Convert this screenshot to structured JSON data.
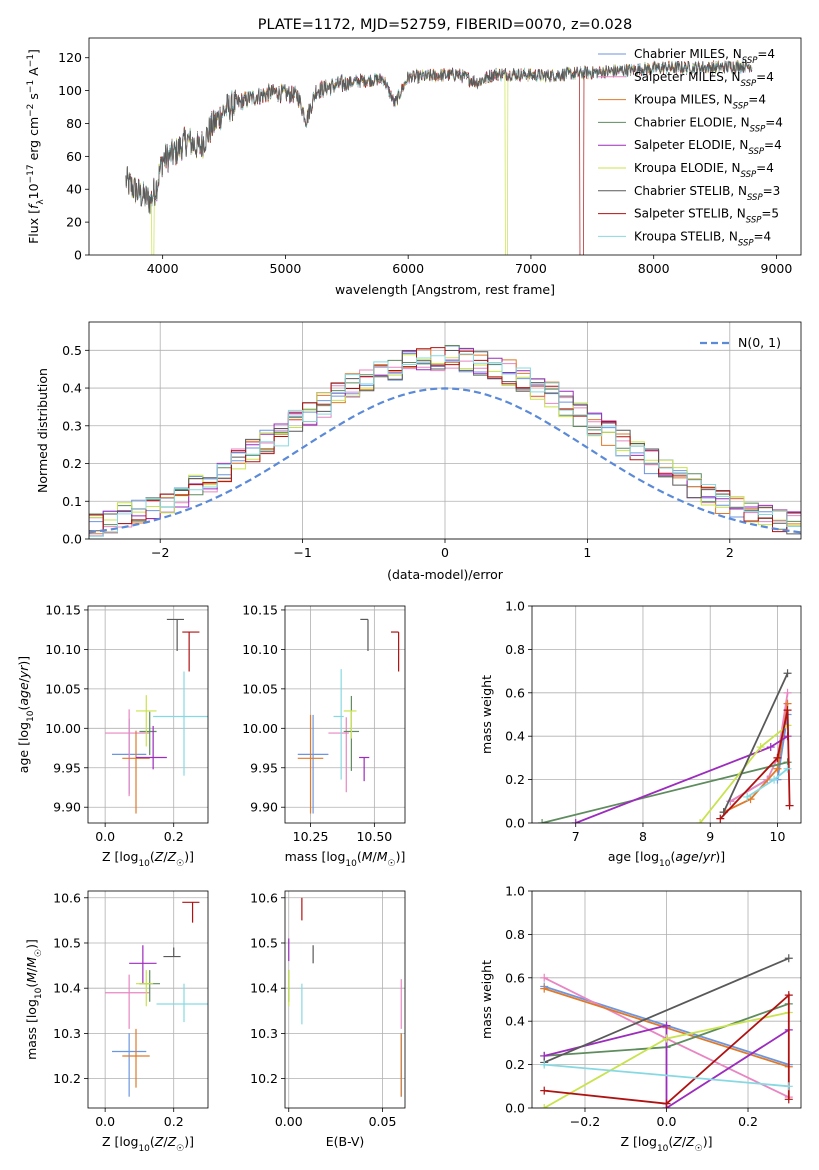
{
  "chart_data": [
    {
      "type": "line",
      "title": "PLATE=1172, MJD=52759, FIBERID=0070, z=0.028",
      "xlabel": "wavelength [Angstrom, rest frame]",
      "ylabel_parts": [
        "Flux [",
        "f",
        "λ",
        "10",
        "−17",
        " erg cm",
        "−2",
        " s",
        "−1",
        " A",
        "−1",
        "]"
      ],
      "xlim": [
        3400,
        9200
      ],
      "ylim": [
        0,
        132
      ],
      "xticks": [
        "4000",
        "5000",
        "6000",
        "7000",
        "8000",
        "9000"
      ],
      "xtick_values": [
        4000,
        5000,
        6000,
        7000,
        8000,
        9000
      ],
      "yticks": [
        "0",
        "20",
        "40",
        "60",
        "80",
        "100",
        "120"
      ],
      "ytick_values": [
        0,
        20,
        40,
        60,
        80,
        100,
        120
      ],
      "spectrum_anchors": [
        [
          3700,
          45
        ],
        [
          3800,
          38
        ],
        [
          3900,
          33
        ],
        [
          3950,
          42
        ],
        [
          4000,
          58
        ],
        [
          4100,
          62
        ],
        [
          4200,
          70
        ],
        [
          4300,
          65
        ],
        [
          4400,
          78
        ],
        [
          4500,
          88
        ],
        [
          4600,
          92
        ],
        [
          4700,
          95
        ],
        [
          4800,
          97
        ],
        [
          4900,
          99
        ],
        [
          5000,
          98
        ],
        [
          5100,
          97
        ],
        [
          5170,
          82
        ],
        [
          5250,
          100
        ],
        [
          5400,
          103
        ],
        [
          5600,
          106
        ],
        [
          5800,
          107
        ],
        [
          5890,
          92
        ],
        [
          6000,
          108
        ],
        [
          6200,
          109
        ],
        [
          6400,
          110
        ],
        [
          6563,
          105
        ],
        [
          6700,
          110
        ],
        [
          6900,
          110
        ],
        [
          7100,
          109
        ],
        [
          7300,
          110
        ],
        [
          7500,
          111
        ],
        [
          7700,
          112
        ],
        [
          7900,
          113
        ],
        [
          8100,
          114
        ],
        [
          8300,
          114
        ],
        [
          8500,
          114
        ],
        [
          8700,
          115
        ],
        [
          8800,
          115
        ]
      ],
      "dropouts": [
        {
          "series": 5,
          "from": 6790,
          "to": 6810
        },
        {
          "series": 7,
          "from": 7400,
          "to": 7430
        },
        {
          "series": 5,
          "from": 3910,
          "to": 3930
        }
      ],
      "legend": {
        "position": "right",
        "entries": [
          {
            "name": "Chabrier MILES, N",
            "sub": "SSP",
            "suffix": "=4"
          },
          {
            "name": "Salpeter MILES, N",
            "sub": "SSP",
            "suffix": "=4"
          },
          {
            "name": "Kroupa MILES, N",
            "sub": "SSP",
            "suffix": "=4"
          },
          {
            "name": "Chabrier ELODIE, N",
            "sub": "SSP",
            "suffix": "=4"
          },
          {
            "name": "Salpeter ELODIE, N",
            "sub": "SSP",
            "suffix": "=4"
          },
          {
            "name": "Kroupa ELODIE, N",
            "sub": "SSP",
            "suffix": "=4"
          },
          {
            "name": "Chabrier STELIB, N",
            "sub": "SSP",
            "suffix": "=3"
          },
          {
            "name": "Salpeter STELIB, N",
            "sub": "SSP",
            "suffix": "=5"
          },
          {
            "name": "Kroupa STELIB, N",
            "sub": "SSP",
            "suffix": "=4"
          }
        ]
      }
    },
    {
      "type": "line",
      "xlabel": "(data-model)/error",
      "ylabel": "Normed distribution",
      "xlim": [
        -2.5,
        2.5
      ],
      "ylim": [
        0,
        0.575
      ],
      "grid": true,
      "xticks": [
        "−2",
        "−1",
        "0",
        "1",
        "2"
      ],
      "xtick_values": [
        -2,
        -1,
        0,
        1,
        2
      ],
      "yticks": [
        "0.0",
        "0.1",
        "0.2",
        "0.3",
        "0.4",
        "0.5"
      ],
      "ytick_values": [
        0,
        0.1,
        0.2,
        0.3,
        0.4,
        0.5
      ],
      "bin_width": 0.1,
      "gaussian": {
        "name": "N(0, 1)",
        "mean": 0,
        "sigma": 1
      }
    },
    {
      "type": "scatter",
      "xlabel": "Z [log10(Z/Z☉)]",
      "ylabel": "age  [log10(age/yr)]",
      "xlim": [
        -0.05,
        0.3
      ],
      "ylim": [
        9.88,
        10.155
      ],
      "grid": true,
      "xticks": [
        "0.0",
        "0.2"
      ],
      "xtick_values": [
        0,
        0.2
      ],
      "yticks": [
        "9.90",
        "9.95",
        "10.00",
        "10.05",
        "10.10",
        "10.15"
      ],
      "ytick_values": [
        9.9,
        9.95,
        10.0,
        10.05,
        10.1,
        10.15
      ],
      "points": [
        {
          "x": 0.07,
          "y": 9.967,
          "xerr": [
            0.05,
            0.05
          ],
          "yerr": [
            0.05,
            0.045
          ]
        },
        {
          "x": 0.07,
          "y": 9.994,
          "xerr": [
            0.07,
            0.06
          ],
          "yerr": [
            0.08,
            0.03
          ]
        },
        {
          "x": 0.09,
          "y": 9.962,
          "xerr": [
            0.04,
            0.04
          ],
          "yerr": [
            0.07,
            0.035
          ]
        },
        {
          "x": 0.13,
          "y": 9.996,
          "xerr": [
            0.03,
            0.02
          ],
          "yerr": [
            0.03,
            0.025
          ]
        },
        {
          "x": 0.14,
          "y": 9.963,
          "xerr": [
            0.05,
            0.04
          ],
          "yerr": [
            0.015,
            0.04
          ]
        },
        {
          "x": 0.12,
          "y": 10.022,
          "xerr": [
            0.03,
            0.03
          ],
          "yerr": [
            0.045,
            0.02
          ]
        },
        {
          "x": 0.21,
          "y": 10.138,
          "xerr": [
            0.03,
            0.02
          ],
          "yerr": [
            0.04,
            0.0
          ]
        },
        {
          "x": 0.245,
          "y": 10.122,
          "xerr": [
            0.02,
            0.03
          ],
          "yerr": [
            0.05,
            0.0
          ]
        },
        {
          "x": 0.23,
          "y": 10.015,
          "xerr": [
            0.09,
            0.09
          ],
          "yerr": [
            0.075,
            0.057
          ]
        }
      ]
    },
    {
      "type": "scatter",
      "xlabel": "mass [log10(M/M☉)]",
      "xlim": [
        10.15,
        10.62
      ],
      "ylim": [
        9.88,
        10.155
      ],
      "grid": true,
      "xticks": [
        "10.25",
        "10.50"
      ],
      "xtick_values": [
        10.25,
        10.5
      ],
      "yticks": [
        "9.90",
        "9.95",
        "10.00",
        "10.05",
        "10.10",
        "10.15"
      ],
      "ytick_values": [
        9.9,
        9.95,
        10.0,
        10.05,
        10.1,
        10.15
      ],
      "points": [
        {
          "x": 10.26,
          "y": 9.967,
          "xerr": [
            0.06,
            0.06
          ],
          "yerr": [
            0.075,
            0.05
          ]
        },
        {
          "x": 10.39,
          "y": 9.994,
          "xerr": [
            0.07,
            0.01
          ],
          "yerr": [
            0.075,
            0.02
          ]
        },
        {
          "x": 10.25,
          "y": 9.962,
          "xerr": [
            0.05,
            0.05
          ],
          "yerr": [
            0.07,
            0.055
          ]
        },
        {
          "x": 10.41,
          "y": 9.996,
          "xerr": [
            0.03,
            0.03
          ],
          "yerr": [
            0.05,
            0.045
          ]
        },
        {
          "x": 10.46,
          "y": 9.963,
          "xerr": [
            0.02,
            0.02
          ],
          "yerr": [
            0.03,
            0.0
          ]
        },
        {
          "x": 10.41,
          "y": 10.022,
          "xerr": [
            0.03,
            0.02
          ],
          "yerr": [
            0.035,
            0.0
          ]
        },
        {
          "x": 10.475,
          "y": 10.138,
          "xerr": [
            0.03,
            0.0
          ],
          "yerr": [
            0.04,
            0.0
          ]
        },
        {
          "x": 10.595,
          "y": 10.122,
          "xerr": [
            0.03,
            0.0
          ],
          "yerr": [
            0.05,
            0.0
          ]
        },
        {
          "x": 10.37,
          "y": 10.015,
          "xerr": [
            0.03,
            0.01
          ],
          "yerr": [
            0.08,
            0.06
          ]
        }
      ]
    },
    {
      "type": "line",
      "ylabel": "mass weight",
      "xlabel": "age  [log10(age/yr)]",
      "xlim": [
        6.35,
        10.35
      ],
      "ylim": [
        0,
        1.0
      ],
      "grid": true,
      "xticks": [
        "7",
        "8",
        "9",
        "10"
      ],
      "xtick_values": [
        7,
        8,
        9,
        10
      ],
      "yticks": [
        "0.0",
        "0.2",
        "0.4",
        "0.6",
        "0.8",
        "1.0"
      ],
      "ytick_values": [
        0,
        0.2,
        0.4,
        0.6,
        0.8,
        1.0
      ],
      "series": [
        {
          "x": [
            9.3,
            9.85,
            10.0,
            10.15
          ],
          "y": [
            0.1,
            0.2,
            0.2,
            0.5
          ]
        },
        {
          "x": [
            9.3,
            9.85,
            10.0,
            10.15
          ],
          "y": [
            0.1,
            0.2,
            0.3,
            0.6
          ]
        },
        {
          "x": [
            9.2,
            9.6,
            10.0,
            10.15
          ],
          "y": [
            0.05,
            0.11,
            0.25,
            0.55
          ]
        },
        {
          "x": [
            6.5,
            10.15
          ],
          "y": [
            0.0,
            0.28
          ]
        },
        {
          "x": [
            7.0,
            9.9,
            10.15
          ],
          "y": [
            0.0,
            0.35,
            0.4
          ]
        },
        {
          "x": [
            8.85,
            9.75,
            10.15
          ],
          "y": [
            0.0,
            0.35,
            0.45
          ]
        },
        {
          "x": [
            9.2,
            10.15
          ],
          "y": [
            0.05,
            0.69
          ]
        },
        {
          "x": [
            9.15,
            10.0,
            10.15,
            10.18
          ],
          "y": [
            0.02,
            0.3,
            0.52,
            0.08
          ]
        },
        {
          "x": [
            9.55,
            9.95,
            10.15
          ],
          "y": [
            0.12,
            0.2,
            0.25
          ]
        }
      ]
    },
    {
      "type": "scatter",
      "xlabel": "Z [log10(Z/Z☉)]",
      "ylabel": "mass [log10(M/M☉)]",
      "xlim": [
        -0.05,
        0.3
      ],
      "ylim": [
        10.135,
        10.615
      ],
      "grid": true,
      "xticks": [
        "0.0",
        "0.2"
      ],
      "xtick_values": [
        0,
        0.2
      ],
      "yticks": [
        "10.2",
        "10.3",
        "10.4",
        "10.5",
        "10.6"
      ],
      "ytick_values": [
        10.2,
        10.3,
        10.4,
        10.5,
        10.6
      ],
      "points": [
        {
          "x": 0.07,
          "y": 10.26,
          "xerr": [
            0.05,
            0.05
          ],
          "yerr": [
            0.1,
            0.04
          ]
        },
        {
          "x": 0.07,
          "y": 10.39,
          "xerr": [
            0.07,
            0.06
          ],
          "yerr": [
            0.08,
            0.04
          ]
        },
        {
          "x": 0.09,
          "y": 10.25,
          "xerr": [
            0.04,
            0.04
          ],
          "yerr": [
            0.07,
            0.06
          ]
        },
        {
          "x": 0.13,
          "y": 10.41,
          "xerr": [
            0.03,
            0.03
          ],
          "yerr": [
            0.04,
            0.03
          ]
        },
        {
          "x": 0.11,
          "y": 10.455,
          "xerr": [
            0.04,
            0.04
          ],
          "yerr": [
            0.045,
            0.04
          ]
        },
        {
          "x": 0.12,
          "y": 10.41,
          "xerr": [
            0.03,
            0.02
          ],
          "yerr": [
            0.05,
            0.03
          ]
        },
        {
          "x": 0.2,
          "y": 10.47,
          "xerr": [
            0.03,
            0.02
          ],
          "yerr": [
            0.0,
            0.02
          ]
        },
        {
          "x": 0.255,
          "y": 10.59,
          "xerr": [
            0.03,
            0.02
          ],
          "yerr": [
            0.045,
            0.0
          ]
        },
        {
          "x": 0.23,
          "y": 10.365,
          "xerr": [
            0.08,
            0.09
          ],
          "yerr": [
            0.04,
            0.045
          ]
        }
      ]
    },
    {
      "type": "scatter",
      "xlabel": "E(B-V)",
      "xlim": [
        -0.002,
        0.062
      ],
      "ylim": [
        10.135,
        10.615
      ],
      "grid": true,
      "xticks": [
        "0.00",
        "0.05"
      ],
      "xtick_values": [
        0,
        0.05
      ],
      "yticks": [
        "10.2",
        "10.3",
        "10.4",
        "10.5",
        "10.6"
      ],
      "ytick_values": [
        10.2,
        10.3,
        10.4,
        10.5,
        10.6
      ],
      "points": [
        {
          "x": 0.06,
          "y": 10.26,
          "xerr": [
            0,
            0
          ],
          "yerr": [
            0.1,
            0.04
          ]
        },
        {
          "x": 0.06,
          "y": 10.39,
          "xerr": [
            0,
            0
          ],
          "yerr": [
            0.08,
            0.03
          ]
        },
        {
          "x": 0.06,
          "y": 10.25,
          "xerr": [
            0,
            0
          ],
          "yerr": [
            0.09,
            0.05
          ]
        },
        {
          "x": 0.0,
          "y": 10.41,
          "xerr": [
            0,
            0
          ],
          "yerr": [
            0.04,
            0.03
          ]
        },
        {
          "x": 0.0,
          "y": 10.49,
          "xerr": [
            0,
            0
          ],
          "yerr": [
            0.03,
            0.02
          ]
        },
        {
          "x": 0.0,
          "y": 10.41,
          "xerr": [
            0,
            0
          ],
          "yerr": [
            0.05,
            0.03
          ]
        },
        {
          "x": 0.013,
          "y": 10.475,
          "xerr": [
            0,
            0
          ],
          "yerr": [
            0.02,
            0.02
          ]
        },
        {
          "x": 0.007,
          "y": 10.57,
          "xerr": [
            0,
            0
          ],
          "yerr": [
            0.02,
            0.03
          ]
        },
        {
          "x": 0.007,
          "y": 10.37,
          "xerr": [
            0,
            0
          ],
          "yerr": [
            0.05,
            0.04
          ]
        }
      ]
    },
    {
      "type": "line",
      "ylabel": "mass weight",
      "xlabel": "Z [log10(Z/Z☉)]",
      "xlim": [
        -0.33,
        0.33
      ],
      "ylim": [
        0,
        1.0
      ],
      "grid": true,
      "xticks": [
        "−0.2",
        "0.0",
        "0.2"
      ],
      "xtick_values": [
        -0.2,
        0,
        0.2
      ],
      "yticks": [
        "0.0",
        "0.2",
        "0.4",
        "0.6",
        "0.8",
        "1.0"
      ],
      "ytick_values": [
        0,
        0.2,
        0.4,
        0.6,
        0.8,
        1.0
      ],
      "series": [
        {
          "x": [
            -0.3,
            0.0,
            0.3
          ],
          "y": [
            0.56,
            0.38,
            0.2
          ]
        },
        {
          "x": [
            -0.3,
            0.0,
            0.3
          ],
          "y": [
            0.6,
            0.32,
            0.05
          ]
        },
        {
          "x": [
            -0.3,
            0.0,
            0.3
          ],
          "y": [
            0.55,
            0.37,
            0.19
          ]
        },
        {
          "x": [
            -0.3,
            0.0,
            0.3
          ],
          "y": [
            0.24,
            0.28,
            0.48
          ]
        },
        {
          "x": [
            -0.3,
            0.0,
            0.0,
            0.3
          ],
          "y": [
            0.24,
            0.38,
            0.0,
            0.36
          ]
        },
        {
          "x": [
            -0.3,
            0.0,
            0.3
          ],
          "y": [
            0.0,
            0.32,
            0.44
          ]
        },
        {
          "x": [
            -0.3,
            0.3
          ],
          "y": [
            0.21,
            0.69
          ]
        },
        {
          "x": [
            -0.3,
            0.0,
            0.3,
            0.3
          ],
          "y": [
            0.08,
            0.02,
            0.52,
            0.04
          ]
        },
        {
          "x": [
            -0.3,
            0.3
          ],
          "y": [
            0.2,
            0.1
          ]
        }
      ]
    }
  ],
  "series_colors": [
    "#6c96e0",
    "#e886c2",
    "#e07a2a",
    "#5e8c5e",
    "#9c2cbd",
    "#c8e34d",
    "#595959",
    "#b01212",
    "#86d9e2"
  ]
}
